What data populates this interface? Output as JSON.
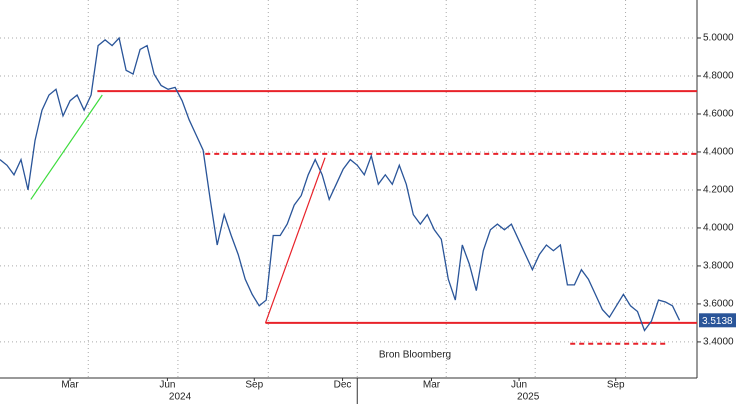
{
  "chart_data": {
    "type": "line",
    "color": "#2a5599",
    "values": [
      4.36,
      4.33,
      4.28,
      4.36,
      4.2,
      4.46,
      4.62,
      4.7,
      4.73,
      4.59,
      4.67,
      4.7,
      4.62,
      4.7,
      4.96,
      4.99,
      4.96,
      5.0,
      4.83,
      4.81,
      4.94,
      4.96,
      4.81,
      4.75,
      4.73,
      4.74,
      4.67,
      4.57,
      4.49,
      4.41,
      4.15,
      3.91,
      4.07,
      3.96,
      3.86,
      3.73,
      3.65,
      3.59,
      3.62,
      3.96,
      3.96,
      4.02,
      4.12,
      4.17,
      4.28,
      4.36,
      4.28,
      4.15,
      4.23,
      4.31,
      4.36,
      4.33,
      4.28,
      4.38,
      4.23,
      4.28,
      4.23,
      4.33,
      4.23,
      4.07,
      4.02,
      4.07,
      3.99,
      3.94,
      3.73,
      3.62,
      3.91,
      3.81,
      3.67,
      3.88,
      3.99,
      4.02,
      3.99,
      4.02,
      3.94,
      3.86,
      3.78,
      3.86,
      3.91,
      3.88,
      3.91,
      3.7,
      3.7,
      3.78,
      3.73,
      3.65,
      3.57,
      3.53,
      3.59,
      3.65,
      3.59,
      3.56,
      3.46,
      3.51,
      3.62,
      3.61,
      3.59,
      3.5138
    ],
    "xlim": [
      0,
      99.5
    ],
    "ylim": [
      3.21,
      5.2
    ],
    "yticks": [
      {
        "value": 3.4,
        "label": "3.4000"
      },
      {
        "value": 3.6,
        "label": "3.6000"
      },
      {
        "value": 3.8,
        "label": "3.8000"
      },
      {
        "value": 4.0,
        "label": "4.0000"
      },
      {
        "value": 4.2,
        "label": "4.2000"
      },
      {
        "value": 4.4,
        "label": "4.4000"
      },
      {
        "value": 4.6,
        "label": "4.6000"
      },
      {
        "value": 4.8,
        "label": "4.8000"
      },
      {
        "value": 5.0,
        "label": "5.0000"
      }
    ],
    "xticks": [
      {
        "value": 10,
        "label": "Mar"
      },
      {
        "value": 23.9,
        "label": "Jun"
      },
      {
        "value": 36.3,
        "label": "Sep"
      },
      {
        "value": 48.9,
        "label": "Dec"
      },
      {
        "value": 61.6,
        "label": "Mar"
      },
      {
        "value": 74.1,
        "label": "Jun"
      },
      {
        "value": 87.9,
        "label": "Sep"
      }
    ],
    "year_labels": [
      {
        "value": 25.7,
        "label": "2024"
      },
      {
        "value": 75.4,
        "label": "2025"
      }
    ],
    "year_separator": 51,
    "xgrid": [
      12.6,
      25.4,
      38.3,
      51,
      63.7,
      76.4,
      89.3
    ],
    "grid": true,
    "levels": [
      {
        "value": 4.72,
        "start": 13.9,
        "end": 99.5,
        "style": "solid",
        "color": "#e8222a"
      },
      {
        "value": 4.39,
        "start": 29.3,
        "end": 99.5,
        "style": "dashed",
        "color": "#e8222a"
      },
      {
        "value": 3.5,
        "start": 37.9,
        "end": 99.5,
        "style": "solid",
        "color": "#e8222a"
      },
      {
        "value": 3.39,
        "start": 81.4,
        "end": 95,
        "style": "dashed",
        "color": "#e8222a"
      }
    ],
    "trendlines": [
      {
        "x": [
          4.4,
          14.6
        ],
        "y": [
          4.15,
          4.7
        ],
        "color": "#3ddc3d"
      },
      {
        "x": [
          37.9,
          46.4
        ],
        "y": [
          3.5,
          4.37
        ],
        "color": "#e8222a"
      }
    ],
    "last_label_color": "#2a5599",
    "annotation": "Bron Bloomberg"
  }
}
